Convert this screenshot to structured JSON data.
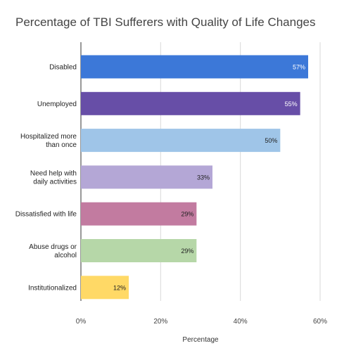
{
  "chart_data": {
    "type": "bar",
    "orientation": "horizontal",
    "title": "Percentage of TBI Sufferers with Quality of Life Changes",
    "xlabel": "Percentage",
    "ylabel": "",
    "xlim": [
      0,
      60
    ],
    "xticks": [
      0,
      20,
      40,
      60
    ],
    "xtick_labels": [
      "0%",
      "20%",
      "40%",
      "60%"
    ],
    "grid": "vertical",
    "categories": [
      [
        "Disabled"
      ],
      [
        "Unemployed"
      ],
      [
        "Hospitalized more",
        "than once"
      ],
      [
        "Need help with",
        "daily activities"
      ],
      [
        "Dissatisfied with life"
      ],
      [
        "Abuse drugs or",
        "alcohol"
      ],
      [
        "Institutionalized"
      ]
    ],
    "values": [
      57,
      55,
      50,
      33,
      29,
      29,
      12
    ],
    "data_labels": [
      "57%",
      "55%",
      "50%",
      "33%",
      "29%",
      "29%",
      "12%"
    ],
    "colors": [
      "#3c78d8",
      "#674ea7",
      "#9fc5e8",
      "#b4a7d6",
      "#c27ba0",
      "#b6d7a8",
      "#ffd966"
    ],
    "label_colors": [
      "#ffffff",
      "#ffffff",
      "#222222",
      "#222222",
      "#222222",
      "#222222",
      "#222222"
    ]
  }
}
